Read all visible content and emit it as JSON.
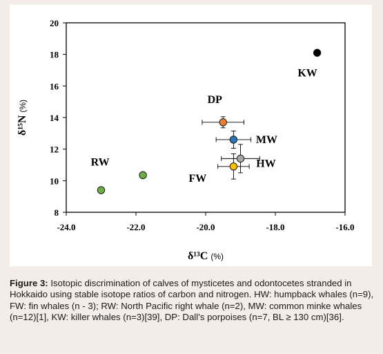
{
  "chart_data": {
    "type": "scatter",
    "xlabel": "δ¹³C",
    "xlabel_unit": "(%)",
    "ylabel": "δ¹⁵N",
    "ylabel_unit": "(%)",
    "xlim": [
      -24.0,
      -16.0
    ],
    "ylim": [
      8,
      20
    ],
    "xticks": [
      -24.0,
      -22.0,
      -20.0,
      -18.0,
      -16.0
    ],
    "xtick_labels": [
      "-24.0",
      "-22.0",
      "-20.0",
      "-18.0",
      "-16.0"
    ],
    "yticks": [
      8,
      10,
      12,
      14,
      16,
      18,
      20
    ],
    "ytick_labels": [
      "8",
      "10",
      "12",
      "14",
      "16",
      "18",
      "20"
    ],
    "grid": false,
    "legend": "none",
    "series": [
      {
        "name": "KW",
        "color": "#000000",
        "points": [
          {
            "x": -16.8,
            "y": 18.1
          }
        ]
      },
      {
        "name": "DP",
        "color": "#ed7d31",
        "points": [
          {
            "x": -19.5,
            "y": 13.7,
            "xerr": 0.6,
            "yerr": 0.35
          }
        ]
      },
      {
        "name": "MW",
        "color": "#2e75b6",
        "points": [
          {
            "x": -19.2,
            "y": 12.6,
            "xerr": 0.5,
            "yerr": 0.55
          }
        ]
      },
      {
        "name": "HW",
        "color": "#a5a5a5",
        "points": [
          {
            "x": -19.0,
            "y": 11.4,
            "xerr": 0.55,
            "yerr": 0.9
          }
        ]
      },
      {
        "name": "FW",
        "color": "#ffc000",
        "points": [
          {
            "x": -19.2,
            "y": 10.9,
            "xerr": 0.45,
            "yerr": 0.8
          }
        ]
      },
      {
        "name": "RW",
        "color": "#70ad47",
        "points": [
          {
            "x": -23.0,
            "y": 9.4
          },
          {
            "x": -21.8,
            "y": 10.35
          }
        ]
      }
    ]
  },
  "caption": {
    "label": "Figure 3:",
    "text": " Isotopic discrimination of calves of mysticetes and odontocetes stranded in Hokkaido using stable isotope ratios of carbon and nitrogen. HW: humpback whales (n=9), FW: fin whales (n - 3); RW: North Pacific right whale (n=2), MW: common minke whales (n=12)[1], KW: killer whales (n=3)[39], DP: Dall’s porpoises (n=7, BL ≥ 130 cm)[36]."
  }
}
